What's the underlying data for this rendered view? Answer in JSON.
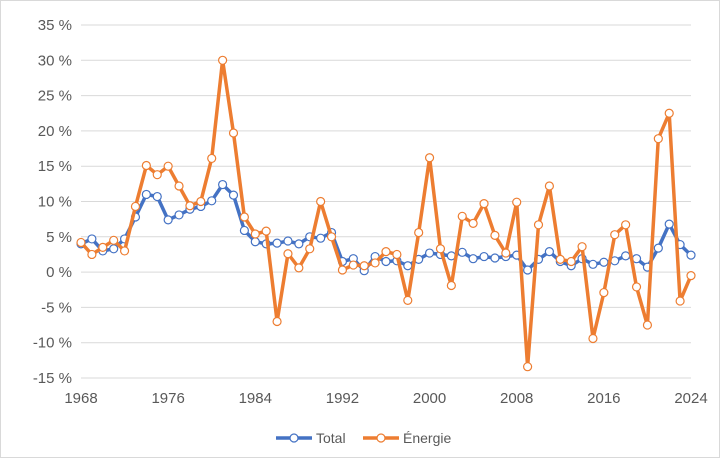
{
  "chart_data": {
    "type": "line",
    "title": "",
    "xlabel": "",
    "ylabel": "",
    "ylim": [
      -15,
      35
    ],
    "y_ticks": [
      35,
      30,
      25,
      20,
      15,
      10,
      5,
      0,
      -5,
      -10,
      -15
    ],
    "y_tick_labels": [
      "35 %",
      "30 %",
      "25 %",
      "20 %",
      "15 %",
      "10 %",
      "5 %",
      "0 %",
      "-5 %",
      "-10 %",
      "-15 %"
    ],
    "x_ticks": [
      1968,
      1976,
      1984,
      1992,
      2000,
      2008,
      2016,
      2024
    ],
    "x_tick_labels": [
      "1968",
      "1976",
      "1984",
      "1992",
      "2000",
      "2008",
      "2016",
      "2024"
    ],
    "grid": "horizontal",
    "legend_position": "bottom",
    "x": [
      1968,
      1969,
      1970,
      1971,
      1972,
      1973,
      1974,
      1975,
      1976,
      1977,
      1978,
      1979,
      1980,
      1981,
      1982,
      1983,
      1984,
      1985,
      1986,
      1987,
      1988,
      1989,
      1990,
      1991,
      1992,
      1993,
      1994,
      1995,
      1996,
      1997,
      1998,
      1999,
      2000,
      2001,
      2002,
      2003,
      2004,
      2005,
      2006,
      2007,
      2008,
      2009,
      2010,
      2011,
      2012,
      2013,
      2014,
      2015,
      2016,
      2017,
      2018,
      2019,
      2020,
      2021,
      2022,
      2023,
      2024
    ],
    "series": [
      {
        "name": "Total",
        "color": "#4472c4",
        "values": [
          4.0,
          4.7,
          3.0,
          3.3,
          4.7,
          7.8,
          11.0,
          10.7,
          7.4,
          8.1,
          8.9,
          9.3,
          10.1,
          12.4,
          10.9,
          5.9,
          4.3,
          4.0,
          4.1,
          4.4,
          4.0,
          5.0,
          4.8,
          5.6,
          1.5,
          1.9,
          0.2,
          2.2,
          1.5,
          1.6,
          0.9,
          1.8,
          2.7,
          2.5,
          2.3,
          2.8,
          1.9,
          2.2,
          2.0,
          2.2,
          2.4,
          0.3,
          1.8,
          2.9,
          1.5,
          0.9,
          1.9,
          1.1,
          1.4,
          1.6,
          2.3,
          1.9,
          0.7,
          3.4,
          6.8,
          3.9,
          2.4
        ]
      },
      {
        "name": "Énergie",
        "color": "#ed7d31",
        "values": [
          4.2,
          2.5,
          3.5,
          4.5,
          3.0,
          9.3,
          15.1,
          13.8,
          15.0,
          12.2,
          9.4,
          10.0,
          16.1,
          30.0,
          19.7,
          7.8,
          5.4,
          5.8,
          -7.0,
          2.6,
          0.6,
          3.3,
          10.0,
          5.0,
          0.3,
          1.0,
          0.9,
          1.3,
          2.9,
          2.5,
          -4.0,
          5.6,
          16.2,
          3.3,
          -1.9,
          7.9,
          6.9,
          9.7,
          5.2,
          2.7,
          9.9,
          -13.4,
          6.7,
          12.2,
          1.8,
          1.5,
          3.6,
          -9.4,
          -2.9,
          5.3,
          6.7,
          -2.1,
          -7.5,
          18.9,
          22.5,
          -4.1,
          -0.5
        ]
      }
    ]
  }
}
